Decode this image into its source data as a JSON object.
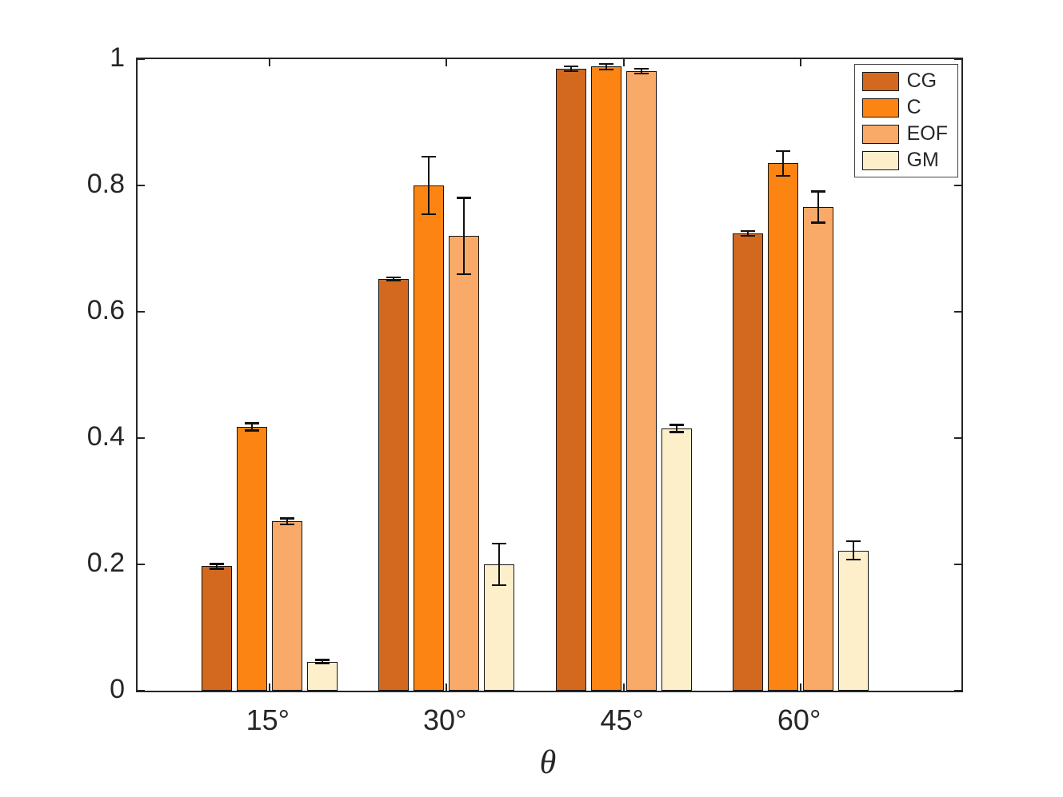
{
  "chart_data": {
    "type": "bar",
    "title": "",
    "xlabel": "θ",
    "ylabel": "",
    "ylim": [
      0,
      1
    ],
    "yticks": [
      0,
      0.2,
      0.4,
      0.6,
      0.8,
      1
    ],
    "categories": [
      "15°",
      "30°",
      "45°",
      "60°"
    ],
    "grid": false,
    "legend_position": "top-right-inside",
    "axis_color": "#262626",
    "error_bar_color": "#111111",
    "series": [
      {
        "name": "CG",
        "color": "#D2691E",
        "values": [
          0.197,
          0.652,
          0.985,
          0.724
        ],
        "errors": [
          0.004,
          0.003,
          0.004,
          0.004
        ]
      },
      {
        "name": "C",
        "color": "#FC8412",
        "values": [
          0.418,
          0.8,
          0.988,
          0.835
        ],
        "errors": [
          0.006,
          0.046,
          0.005,
          0.02
        ]
      },
      {
        "name": "EOF",
        "color": "#F9A968",
        "values": [
          0.268,
          0.72,
          0.981,
          0.766
        ],
        "errors": [
          0.005,
          0.061,
          0.004,
          0.025
        ]
      },
      {
        "name": "GM",
        "color": "#FCEFC9",
        "values": [
          0.046,
          0.2,
          0.415,
          0.222
        ],
        "errors": [
          0.003,
          0.033,
          0.006,
          0.015
        ]
      }
    ]
  }
}
